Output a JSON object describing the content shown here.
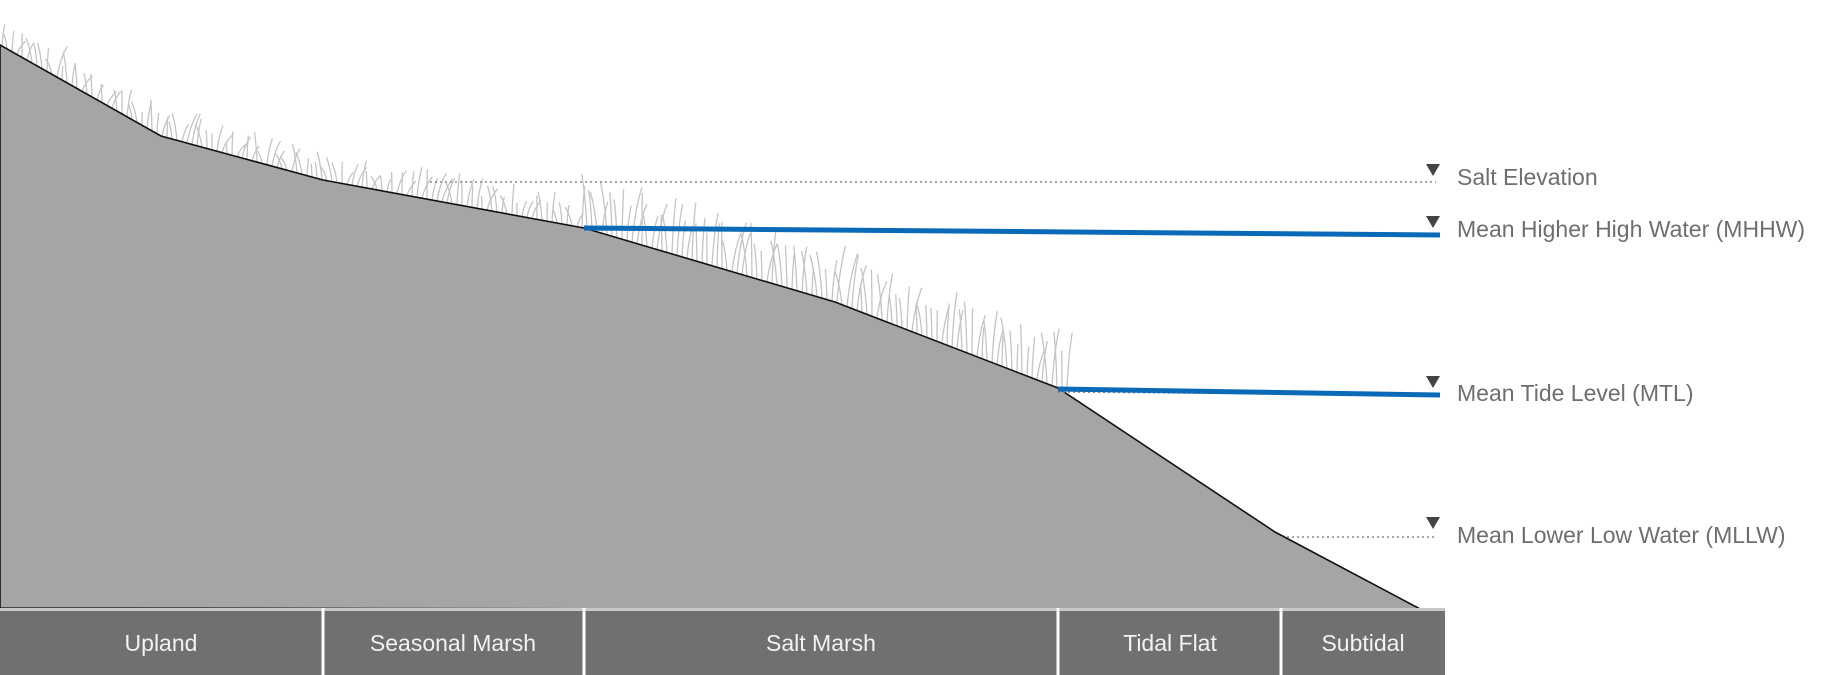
{
  "levels": [
    {
      "label": "Salt Elevation"
    },
    {
      "label": "Mean Higher High Water (MHHW)"
    },
    {
      "label": "Mean Tide Level (MTL)"
    },
    {
      "label": "Mean Lower Low Water (MLLW)"
    }
  ],
  "zones": [
    {
      "label": "Upland"
    },
    {
      "label": "Seasonal Marsh"
    },
    {
      "label": "Salt Marsh"
    },
    {
      "label": "Tidal Flat"
    },
    {
      "label": "Subtidal"
    }
  ]
}
